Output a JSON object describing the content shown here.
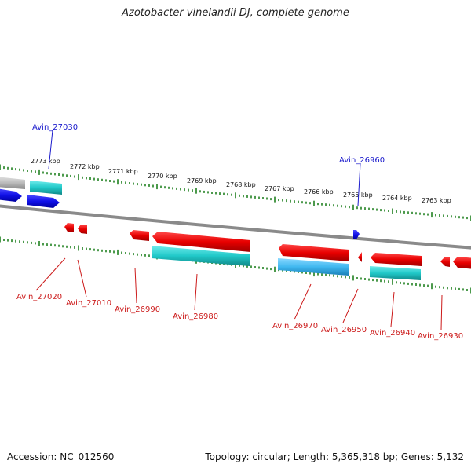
{
  "title": "Azotobacter vinelandii DJ, complete genome",
  "accession_label": "Accession: NC_012560",
  "genome_stats": "Topology: circular; Length: 5,365,318 bp; Genes: 5,132",
  "colors": {
    "forward_gene": "#1010e8",
    "reverse_gene": "#e80000",
    "cds_teal": "#20c8c8",
    "cds_blue": "#40b8f0",
    "backbone": "#8a8a8a",
    "tick": "#208020",
    "forward_label": "#1a1acc",
    "reverse_label": "#cc1a1a"
  },
  "ticks": [
    "2773 kbp",
    "2772 kbp",
    "2771 kbp",
    "2770 kbp",
    "2769 kbp",
    "2768 kbp",
    "2767 kbp",
    "2766 kbp",
    "2765 kbp",
    "2764 kbp",
    "2763 kbp"
  ],
  "forward_gene_labels": [
    "Avin_27030",
    "Avin_26960"
  ],
  "reverse_gene_labels": [
    "Avin_27020",
    "Avin_27010",
    "Avin_26990",
    "Avin_26980",
    "Avin_26970",
    "Avin_26950",
    "Avin_26940",
    "Avin_26930"
  ]
}
